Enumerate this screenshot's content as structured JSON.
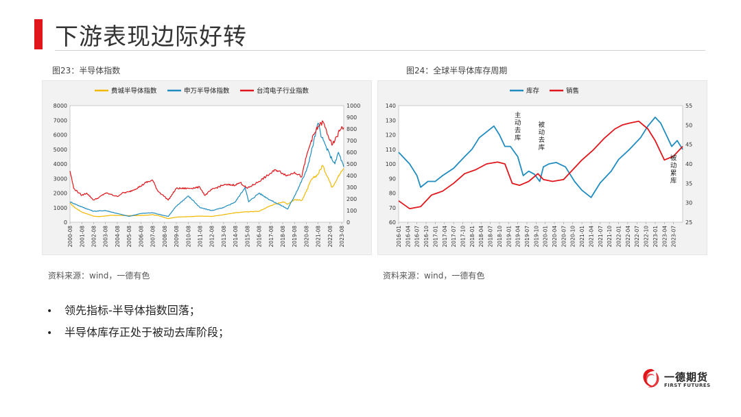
{
  "header": {
    "title": "下游表现边际好转"
  },
  "figures": [
    {
      "caption": "图23：半导体指数",
      "source": "资料来源：wind，一德有色"
    },
    {
      "caption": "图24：全球半导体库存周期",
      "source": "资料来源：wind，一德有色"
    }
  ],
  "bullets": [
    "领先指标-半导体指数回落；",
    "半导体库存正处于被动去库阶段；"
  ],
  "logo": {
    "cn": "一德期货",
    "en": "FIRST FUTURES",
    "icon": "swirl-logo-icon",
    "color": "#e0161b"
  },
  "chart_data": [
    {
      "type": "line",
      "title": "",
      "x_tick_labels": [
        "2000-08",
        "2001-08",
        "2002-08",
        "2003-08",
        "2004-08",
        "2005-08",
        "2006-08",
        "2007-08",
        "2008-08",
        "2009-08",
        "2010-08",
        "2011-08",
        "2012-08",
        "2013-08",
        "2014-08",
        "2015-08",
        "2016-08",
        "2017-08",
        "2018-08",
        "2019-08",
        "2020-08",
        "2021-08",
        "2022-08",
        "2023-08"
      ],
      "x_range": [
        2000.58,
        2023.75
      ],
      "ylim_left": [
        0,
        8000
      ],
      "yticks_left": [
        0,
        1000,
        2000,
        3000,
        4000,
        5000,
        6000,
        7000,
        8000
      ],
      "ylim_right": [
        0,
        1000
      ],
      "yticks_right": [
        0,
        100,
        200,
        300,
        400,
        500,
        600,
        700,
        800,
        900,
        1000
      ],
      "legend_position": "top",
      "series": [
        {
          "name": "费城半导体指数",
          "color": "#f2b800",
          "axis": "left",
          "x": [
            2000.58,
            2001.0,
            2001.58,
            2002.58,
            2003.0,
            2004.0,
            2005.0,
            2006.0,
            2007.0,
            2007.58,
            2008.0,
            2008.9,
            2009.58,
            2010.58,
            2011.58,
            2012.58,
            2013.58,
            2014.58,
            2015.58,
            2016.58,
            2017.58,
            2018.58,
            2019.0,
            2019.58,
            2020.2,
            2020.58,
            2021.0,
            2021.58,
            2021.95,
            2022.4,
            2022.75,
            2023.0,
            2023.3,
            2023.58,
            2023.75
          ],
          "y": [
            1300,
            1000,
            700,
            420,
            380,
            470,
            460,
            450,
            480,
            520,
            460,
            250,
            350,
            380,
            420,
            400,
            520,
            650,
            720,
            750,
            1150,
            1400,
            1250,
            1550,
            1500,
            2100,
            2900,
            3300,
            3900,
            3100,
            2400,
            2700,
            3200,
            3500,
            3700
          ]
        },
        {
          "name": "申万半导体指数",
          "color": "#1f8bbf",
          "axis": "left",
          "x": [
            2000.58,
            2001.58,
            2002.58,
            2003.58,
            2004.58,
            2005.58,
            2006.58,
            2007.58,
            2008.58,
            2008.9,
            2009.58,
            2010.58,
            2011.0,
            2011.58,
            2012.58,
            2013.58,
            2014.58,
            2015.4,
            2015.7,
            2016.58,
            2017.58,
            2018.58,
            2019.0,
            2019.58,
            2020.58,
            2021.0,
            2021.58,
            2021.9,
            2022.58,
            2023.0,
            2023.3,
            2023.75
          ],
          "y": [
            1400,
            1050,
            750,
            800,
            600,
            400,
            600,
            650,
            450,
            400,
            1100,
            1800,
            1500,
            1000,
            800,
            1000,
            1400,
            2400,
            1400,
            2000,
            1500,
            1100,
            900,
            1800,
            3500,
            4800,
            6800,
            5800,
            4600,
            4000,
            4800,
            3800
          ]
        }
      ],
      "series_right": [
        {
          "name": "台湾电子行业指数",
          "color": "#e0161b",
          "axis": "right",
          "x": [
            2000.58,
            2000.9,
            2001.58,
            2002.0,
            2002.58,
            2003.0,
            2003.58,
            2004.0,
            2004.58,
            2005.0,
            2005.58,
            2006.58,
            2007.0,
            2007.58,
            2008.0,
            2008.58,
            2008.9,
            2009.58,
            2010.58,
            2011.58,
            2012.0,
            2012.58,
            2013.58,
            2014.58,
            2015.0,
            2015.58,
            2016.58,
            2017.58,
            2018.0,
            2018.58,
            2019.0,
            2019.58,
            2020.2,
            2020.58,
            2021.0,
            2021.58,
            2022.0,
            2022.4,
            2022.75,
            2023.0,
            2023.58,
            2023.75
          ],
          "y": [
            440,
            290,
            230,
            250,
            190,
            210,
            250,
            240,
            220,
            250,
            260,
            310,
            340,
            360,
            270,
            220,
            190,
            290,
            290,
            300,
            230,
            280,
            320,
            320,
            340,
            290,
            350,
            420,
            450,
            420,
            400,
            430,
            390,
            560,
            700,
            820,
            860,
            750,
            660,
            700,
            820,
            810
          ]
        }
      ]
    },
    {
      "type": "line",
      "title": "",
      "x_tick_labels": [
        "2016-01",
        "2016-04",
        "2016-07",
        "2016-10",
        "2017-01",
        "2017-04",
        "2017-07",
        "2017-10",
        "2018-01",
        "2018-04",
        "2018-07",
        "2018-10",
        "2019-01",
        "2019-04",
        "2019-07",
        "2019-10",
        "2020-01",
        "2020-04",
        "2020-07",
        "2020-10",
        "2021-01",
        "2021-04",
        "2021-07",
        "2021-10",
        "2022-01",
        "2022-04",
        "2022-07",
        "2022-10",
        "2023-01",
        "2023-04",
        "2023-07"
      ],
      "x_range": [
        2016.0,
        2023.75
      ],
      "ylim_left": [
        60,
        140
      ],
      "yticks_left": [
        60,
        70,
        80,
        90,
        100,
        110,
        120,
        130,
        140
      ],
      "ylim_right": [
        25,
        55
      ],
      "yticks_right": [
        25,
        30,
        35,
        40,
        45,
        50,
        55
      ],
      "legend_position": "top",
      "annotations": [
        {
          "text": "主动去库",
          "x": 2019.25,
          "y_right": 52
        },
        {
          "text": "被动去库",
          "x": 2019.9,
          "y_right": 49.5
        },
        {
          "text": "被动累库",
          "x": 2023.5,
          "y_right": 41
        }
      ],
      "series": [
        {
          "name": "库存",
          "color": "#1f8bbf",
          "axis": "left",
          "x": [
            2016.0,
            2016.3,
            2016.5,
            2016.6,
            2016.8,
            2017.0,
            2017.2,
            2017.5,
            2017.8,
            2018.0,
            2018.2,
            2018.4,
            2018.6,
            2018.75,
            2018.9,
            2019.05,
            2019.25,
            2019.4,
            2019.55,
            2019.7,
            2019.85,
            2019.95,
            2020.1,
            2020.3,
            2020.55,
            2020.8,
            2021.0,
            2021.25,
            2021.5,
            2021.8,
            2022.0,
            2022.3,
            2022.6,
            2022.8,
            2023.0,
            2023.15,
            2023.3,
            2023.45,
            2023.6,
            2023.75
          ],
          "y": [
            108,
            100,
            92,
            84,
            88,
            88,
            92,
            97,
            105,
            110,
            118,
            122,
            126,
            120,
            112,
            112,
            105,
            92,
            95,
            93,
            88,
            98,
            100,
            101,
            98,
            88,
            82,
            77,
            87,
            95,
            103,
            110,
            118,
            126,
            132,
            128,
            120,
            112,
            116,
            110
          ]
        }
      ],
      "series_right": [
        {
          "name": "销售",
          "color": "#e0161b",
          "axis": "right",
          "x": [
            2016.0,
            2016.3,
            2016.6,
            2016.9,
            2017.2,
            2017.5,
            2017.8,
            2018.1,
            2018.4,
            2018.7,
            2018.9,
            2019.1,
            2019.3,
            2019.55,
            2019.8,
            2019.95,
            2020.2,
            2020.5,
            2020.8,
            2021.0,
            2021.3,
            2021.6,
            2021.9,
            2022.1,
            2022.3,
            2022.55,
            2022.8,
            2023.0,
            2023.25,
            2023.5,
            2023.75
          ],
          "y": [
            30.5,
            28.5,
            29.0,
            32.0,
            33.0,
            35.0,
            37.5,
            38.5,
            40.0,
            40.5,
            40.0,
            35.0,
            34.5,
            35.5,
            37.5,
            36.0,
            35.5,
            36.0,
            39.0,
            41.0,
            43.5,
            46.5,
            49.0,
            50.0,
            50.5,
            51.0,
            49.0,
            46.0,
            41.0,
            42.0,
            44.5
          ]
        }
      ]
    }
  ]
}
